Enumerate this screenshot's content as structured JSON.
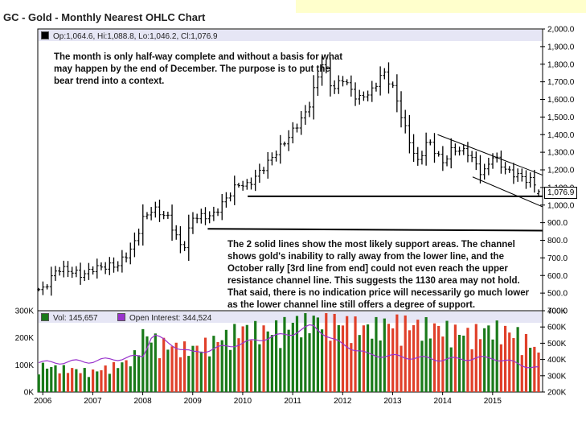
{
  "title": "GC - Gold - Monthly Nearest OHLC Chart",
  "price_legend": "Op:1,064.6, Hi:1,088.8, Lo:1,046.2, Cl:1,076.9",
  "volume_legend": "Vol: 145,657",
  "oi_legend": "Open Interest: 344,524",
  "last_price_label": "1,076.9",
  "annotations": [
    "The month is only half-way complete and without a basis for what may happen by the end of December. The purpose is to put the bear trend into a context.",
    "The 2 solid lines show the most likely support areas. The channel shows gold's inability to rally away from the lower line, and the October rally [3rd line from end] could not even reach the upper resistance channel line. This suggests the 1130 area may not hold. That said, there is no indication price will necessarily go much lower as the lower channel line still offers a degree of support."
  ],
  "colors": {
    "price_bar": "#000000",
    "volume_up": "#1a7a1a",
    "volume_down": "#e0402a",
    "open_interest": "#9933cc",
    "legend_band": "#e6e6f5",
    "title_band": "#ffffcc"
  },
  "chart_data": [
    {
      "type": "ohlc",
      "title": "GC - Gold - Monthly Nearest OHLC Chart",
      "x_ticks": [
        "2006",
        "2007",
        "2008",
        "2009",
        "2010",
        "2011",
        "2012",
        "2013",
        "2014",
        "2015"
      ],
      "y_ticks": [
        "400.0",
        "500.0",
        "600.0",
        "700.0",
        "800.0",
        "900.0",
        "1,000.0",
        "1,100.0",
        "1,200.0",
        "1,300.0",
        "1,400.0",
        "1,500.0",
        "1,600.0",
        "1,700.0",
        "1,800.0",
        "1,900.0",
        "2,000.0"
      ],
      "ylim": [
        400,
        2000
      ],
      "xlim": [
        2005.9,
        2016.0
      ],
      "close_anchors": [
        [
          2006.0,
          520
        ],
        [
          2006.3,
          640
        ],
        [
          2006.5,
          630
        ],
        [
          2006.8,
          600
        ],
        [
          2007.0,
          640
        ],
        [
          2007.5,
          660
        ],
        [
          2007.8,
          760
        ],
        [
          2008.0,
          920
        ],
        [
          2008.2,
          980
        ],
        [
          2008.5,
          930
        ],
        [
          2008.8,
          740
        ],
        [
          2009.0,
          930
        ],
        [
          2009.4,
          940
        ],
        [
          2009.9,
          1120
        ],
        [
          2010.1,
          1110
        ],
        [
          2010.5,
          1240
        ],
        [
          2010.9,
          1380
        ],
        [
          2011.3,
          1540
        ],
        [
          2011.6,
          1820
        ],
        [
          2011.8,
          1650
        ],
        [
          2012.0,
          1720
        ],
        [
          2012.3,
          1600
        ],
        [
          2012.6,
          1650
        ],
        [
          2012.8,
          1760
        ],
        [
          2013.0,
          1670
        ],
        [
          2013.3,
          1390
        ],
        [
          2013.5,
          1240
        ],
        [
          2013.7,
          1370
        ],
        [
          2014.0,
          1240
        ],
        [
          2014.2,
          1320
        ],
        [
          2014.5,
          1300
        ],
        [
          2014.8,
          1170
        ],
        [
          2015.0,
          1280
        ],
        [
          2015.3,
          1190
        ],
        [
          2015.5,
          1170
        ],
        [
          2015.7,
          1140
        ],
        [
          2015.8,
          1140
        ],
        [
          2015.92,
          1077
        ]
      ],
      "last_bar": {
        "open": 1064.6,
        "high": 1088.8,
        "low": 1046.2,
        "close": 1076.9
      },
      "support_lines": [
        {
          "x": [
            2010.1,
            2016.0
          ],
          "y": [
            1050,
            1050
          ]
        },
        {
          "x": [
            2009.3,
            2016.0
          ],
          "y": [
            865,
            855
          ]
        }
      ],
      "channel_lines": [
        {
          "x": [
            2013.9,
            2016.0
          ],
          "y": [
            1400,
            1170
          ]
        },
        {
          "x": [
            2014.6,
            2016.0
          ],
          "y": [
            1160,
            990
          ]
        }
      ]
    },
    {
      "type": "bar",
      "series": [
        {
          "name": "Vol: 145,657",
          "color": "#1a7a1a"
        },
        {
          "name": "Open Interest: 344,524",
          "color": "#9933cc"
        }
      ],
      "y_ticks_left": [
        "0K",
        "100K",
        "200K",
        "300K"
      ],
      "y_ticks_right": [
        "200K",
        "300K",
        "400K",
        "500K",
        "600K",
        "700K"
      ],
      "ylim_left": [
        0,
        300000
      ],
      "ylim_right": [
        200000,
        700000
      ],
      "volume_anchors": [
        [
          2006.0,
          90000
        ],
        [
          2007.0,
          70000
        ],
        [
          2007.8,
          110000
        ],
        [
          2008.0,
          200000
        ],
        [
          2008.5,
          160000
        ],
        [
          2009.0,
          150000
        ],
        [
          2009.5,
          180000
        ],
        [
          2010.0,
          220000
        ],
        [
          2010.5,
          210000
        ],
        [
          2011.0,
          240000
        ],
        [
          2011.5,
          250000
        ],
        [
          2012.0,
          240000
        ],
        [
          2012.5,
          220000
        ],
        [
          2013.0,
          240000
        ],
        [
          2013.5,
          230000
        ],
        [
          2014.0,
          220000
        ],
        [
          2014.5,
          200000
        ],
        [
          2015.0,
          220000
        ],
        [
          2015.5,
          200000
        ],
        [
          2015.92,
          145657
        ]
      ],
      "open_interest_anchors": [
        [
          2006.0,
          380000
        ],
        [
          2007.0,
          390000
        ],
        [
          2008.0,
          420000
        ],
        [
          2008.2,
          560000
        ],
        [
          2008.5,
          500000
        ],
        [
          2009.0,
          440000
        ],
        [
          2010.0,
          500000
        ],
        [
          2010.6,
          540000
        ],
        [
          2011.0,
          560000
        ],
        [
          2011.4,
          610000
        ],
        [
          2011.8,
          520000
        ],
        [
          2012.5,
          430000
        ],
        [
          2013.0,
          420000
        ],
        [
          2014.0,
          400000
        ],
        [
          2015.0,
          410000
        ],
        [
          2015.92,
          344524
        ]
      ]
    }
  ]
}
